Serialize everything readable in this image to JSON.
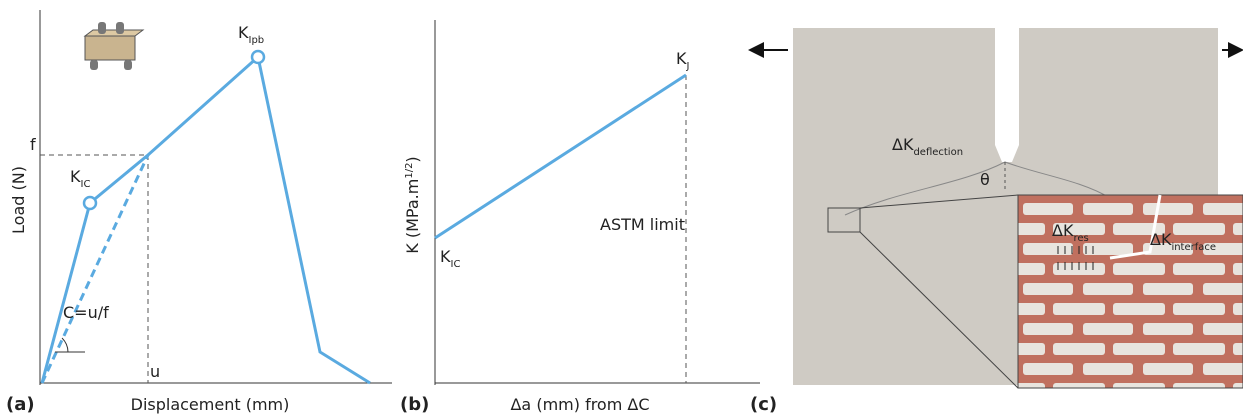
{
  "panel_a": {
    "label": "(a)",
    "x_axis_label": "Displacement (mm)",
    "y_axis_label": "Load (N)",
    "f_label": "f",
    "u_label": "u",
    "k_ic": {
      "base": "K",
      "sub": "IC"
    },
    "k_ipb": {
      "base": "K",
      "sub": "Ipb"
    },
    "compliance": "C=u/f"
  },
  "panel_b": {
    "label": "(b)",
    "x_axis_label": "Δa (mm) from ΔC",
    "y_axis_label": {
      "base": "K (MPa.m",
      "sup": "1/2",
      "end": ")"
    },
    "k_ic": {
      "base": "K",
      "sub": "IC"
    },
    "k_j": {
      "base": "K",
      "sub": "J"
    },
    "astm": "ASTM limit"
  },
  "panel_c": {
    "label": "(c)",
    "k_deflection": {
      "base": "ΔK",
      "sub": "deflection"
    },
    "theta": "θ",
    "k_res": {
      "base": "ΔK",
      "sub": "res"
    },
    "k_interface": {
      "base": "ΔK",
      "sub": "interface"
    }
  }
}
